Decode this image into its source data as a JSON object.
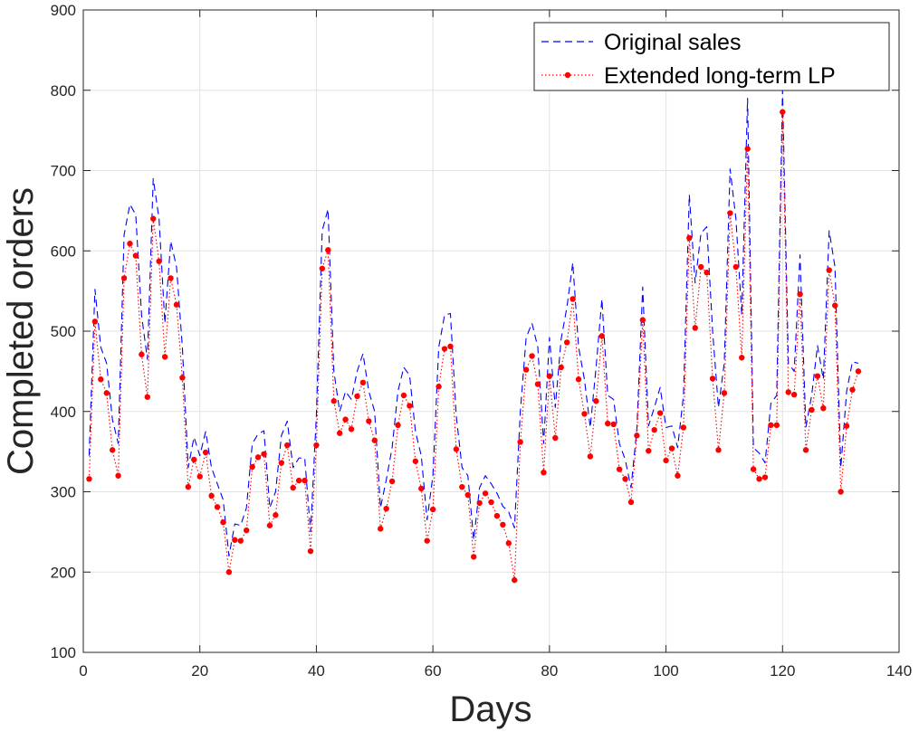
{
  "chart_data": {
    "type": "line",
    "title": "",
    "xlabel": "Days",
    "ylabel": "Completed orders",
    "xlim": [
      0,
      140
    ],
    "ylim": [
      100,
      900
    ],
    "xticks": [
      0,
      20,
      40,
      60,
      80,
      100,
      120,
      140
    ],
    "yticks": [
      100,
      200,
      300,
      400,
      500,
      600,
      700,
      800,
      900
    ],
    "grid": true,
    "legend_position": "top-right",
    "x": [
      1,
      2,
      3,
      4,
      5,
      6,
      7,
      8,
      9,
      10,
      11,
      12,
      13,
      14,
      15,
      16,
      17,
      18,
      19,
      20,
      21,
      22,
      23,
      24,
      25,
      26,
      27,
      28,
      29,
      30,
      31,
      32,
      33,
      34,
      35,
      36,
      37,
      38,
      39,
      40,
      41,
      42,
      43,
      44,
      45,
      46,
      47,
      48,
      49,
      50,
      51,
      52,
      53,
      54,
      55,
      56,
      57,
      58,
      59,
      60,
      61,
      62,
      63,
      64,
      65,
      66,
      67,
      68,
      69,
      70,
      71,
      72,
      73,
      74,
      75,
      76,
      77,
      78,
      79,
      80,
      81,
      82,
      83,
      84,
      85,
      86,
      87,
      88,
      89,
      90,
      91,
      92,
      93,
      94,
      95,
      96,
      97,
      98,
      99,
      100,
      101,
      102,
      103,
      104,
      105,
      106,
      107,
      108,
      109,
      110,
      111,
      112,
      113,
      114,
      115,
      116,
      117,
      118,
      119,
      120,
      121,
      122,
      123,
      124,
      125,
      126,
      127,
      128,
      129,
      130,
      131,
      132,
      133
    ],
    "series": [
      {
        "name": "Original sales",
        "color": "#0000ff",
        "style": "dashed",
        "values": [
          345,
          552,
          480,
          460,
          390,
          360,
          620,
          658,
          645,
          520,
          465,
          690,
          640,
          510,
          612,
          580,
          480,
          330,
          368,
          345,
          375,
          330,
          310,
          290,
          220,
          260,
          258,
          280,
          360,
          372,
          376,
          280,
          300,
          370,
          388,
          330,
          342,
          342,
          250,
          395,
          625,
          652,
          450,
          400,
          425,
          415,
          450,
          472,
          425,
          400,
          280,
          315,
          355,
          425,
          455,
          445,
          375,
          345,
          265,
          320,
          480,
          520,
          522,
          395,
          330,
          320,
          240,
          305,
          320,
          310,
          298,
          282,
          275,
          255,
          400,
          492,
          510,
          480,
          360,
          492,
          405,
          490,
          530,
          585,
          480,
          440,
          380,
          455,
          540,
          420,
          415,
          360,
          340,
          305,
          378,
          555,
          382,
          405,
          430,
          380,
          382,
          355,
          420,
          670,
          560,
          622,
          630,
          500,
          405,
          460,
          702,
          640,
          520,
          790,
          355,
          348,
          336,
          410,
          420,
          800,
          460,
          450,
          595,
          380,
          420,
          482,
          440,
          625,
          580,
          330,
          425,
          462,
          460
        ]
      },
      {
        "name": "Extended long-term LP",
        "color": "#ff0000",
        "style": "dotted-markers",
        "values": [
          316,
          512,
          440,
          423,
          352,
          320,
          566,
          609,
          594,
          471,
          418,
          640,
          587,
          468,
          566,
          533,
          442,
          306,
          340,
          319,
          349,
          295,
          281,
          262,
          200,
          240,
          239,
          252,
          331,
          343,
          347,
          258,
          271,
          336,
          358,
          305,
          314,
          314,
          226,
          358,
          578,
          601,
          413,
          373,
          390,
          378,
          419,
          436,
          388,
          364,
          254,
          279,
          313,
          383,
          420,
          407,
          338,
          304,
          239,
          278,
          431,
          478,
          481,
          353,
          306,
          296,
          219,
          286,
          298,
          287,
          270,
          259,
          236,
          190,
          362,
          452,
          469,
          434,
          324,
          444,
          367,
          455,
          486,
          540,
          440,
          397,
          344,
          413,
          494,
          385,
          384,
          328,
          316,
          287,
          370,
          514,
          351,
          377,
          398,
          339,
          354,
          320,
          380,
          616,
          504,
          580,
          573,
          441,
          352,
          423,
          647,
          580,
          467,
          727,
          328,
          316,
          318,
          383,
          383,
          773,
          424,
          421,
          546,
          352,
          402,
          444,
          404,
          576,
          532,
          300,
          382,
          427,
          450
        ]
      }
    ]
  }
}
